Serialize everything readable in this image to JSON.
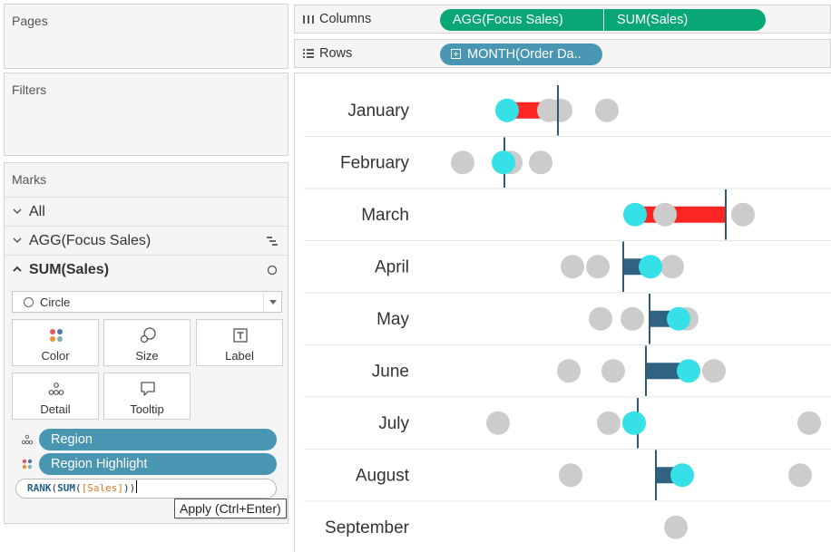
{
  "pages": {
    "title": "Pages"
  },
  "filters": {
    "title": "Filters"
  },
  "marks": {
    "title": "Marks",
    "rows": [
      {
        "label": "All",
        "icon": ""
      },
      {
        "label": "AGG(Focus Sales)",
        "icon": "gantt-bar-icon"
      },
      {
        "label": "SUM(Sales)",
        "icon": "circle-mark-icon"
      }
    ],
    "mark_type": "Circle",
    "buttons": [
      {
        "label": "Color",
        "icon": "color-dots-icon"
      },
      {
        "label": "Size",
        "icon": "size-circles-icon"
      },
      {
        "label": "Label",
        "icon": "text-label-icon"
      },
      {
        "label": "Detail",
        "icon": "detail-dots-icon"
      },
      {
        "label": "Tooltip",
        "icon": "tooltip-bubble-icon"
      }
    ],
    "fields": [
      {
        "label": "Region",
        "icon": "detail-dots-icon"
      },
      {
        "label": "Region Highlight",
        "icon": "color-dots-icon"
      }
    ],
    "calc_editor": {
      "fn": "RANK",
      "open1": "(",
      "fn2": "SUM",
      "open2": "(",
      "field": "[Sales]",
      "close": "))"
    },
    "tooltip": "Apply (Ctrl+Enter)"
  },
  "shelves": {
    "columns": {
      "label": "Columns",
      "pills": [
        "AGG(Focus Sales)",
        "SUM(Sales)"
      ]
    },
    "rows": {
      "label": "Rows",
      "pills": [
        "MONTH(Order Da.."
      ]
    }
  },
  "colors": {
    "highlight": "#35e1e6",
    "other_region": "#cccccc",
    "bar_above": "#fc2522",
    "bar_below": "#2f6381",
    "reference_line": "#2b5c74",
    "pill_green": "#09a775",
    "pill_blue": "#4996b2"
  },
  "chart_data": {
    "type": "dot-bar",
    "x_scale_note": "",
    "categories": [
      "January",
      "February",
      "March",
      "April",
      "May",
      "June",
      "July",
      "August",
      "September"
    ],
    "rows": [
      {
        "month": "January",
        "focus": 234,
        "others": [
          280,
          293,
          344
        ],
        "ref": 290
      },
      {
        "month": "February",
        "focus": 230,
        "others": [
          185,
          238,
          271
        ],
        "ref": 231
      },
      {
        "month": "March",
        "focus": 375,
        "others": [
          408,
          494
        ],
        "ref": 475
      },
      {
        "month": "April",
        "focus": 392,
        "others": [
          306,
          334,
          416
        ],
        "ref": 362
      },
      {
        "month": "May",
        "focus": 423,
        "others": [
          337,
          372,
          432
        ],
        "ref": 391
      },
      {
        "month": "June",
        "focus": 434,
        "others": [
          302,
          351,
          462
        ],
        "ref": 387
      },
      {
        "month": "July",
        "focus": 374,
        "others": [
          224,
          346,
          567
        ],
        "ref": 378
      },
      {
        "month": "August",
        "focus": 427,
        "others": [
          304,
          557
        ],
        "ref": 398
      },
      {
        "month": "September",
        "focus": null,
        "others": [
          420
        ],
        "ref": null
      }
    ]
  }
}
